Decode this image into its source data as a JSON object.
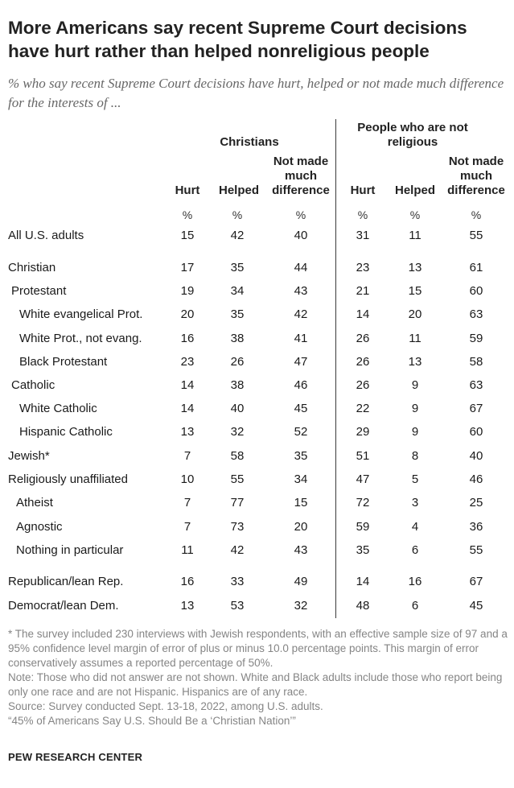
{
  "title": "More Americans say recent Supreme Court decisions have hurt rather than helped nonreligious people",
  "subtitle": "% who say recent Supreme Court decisions have hurt, helped or not made much difference for the interests of ...",
  "groups": [
    "Christians",
    "People who are not religious"
  ],
  "columns": [
    "Hurt",
    "Helped",
    "Not made much difference",
    "Hurt",
    "Helped",
    "Not made much difference"
  ],
  "unit": "%",
  "chart_data": {
    "type": "table",
    "column_groups": [
      {
        "name": "Christians",
        "columns": [
          "Hurt",
          "Helped",
          "Not made much difference"
        ]
      },
      {
        "name": "People who are not religious",
        "columns": [
          "Hurt",
          "Helped",
          "Not made much difference"
        ]
      }
    ],
    "rows": [
      {
        "label": "All U.S. adults",
        "values": [
          15,
          42,
          40,
          31,
          11,
          55
        ]
      },
      {
        "label": "Christian",
        "values": [
          17,
          35,
          44,
          23,
          13,
          61
        ]
      },
      {
        "label": "Protestant",
        "values": [
          19,
          34,
          43,
          21,
          15,
          60
        ]
      },
      {
        "label": "White evangelical Prot.",
        "values": [
          20,
          35,
          42,
          14,
          20,
          63
        ]
      },
      {
        "label": "White Prot., not evang.",
        "values": [
          16,
          38,
          41,
          26,
          11,
          59
        ]
      },
      {
        "label": "Black Protestant",
        "values": [
          23,
          26,
          47,
          26,
          13,
          58
        ]
      },
      {
        "label": "Catholic",
        "values": [
          14,
          38,
          46,
          26,
          9,
          63
        ]
      },
      {
        "label": "White Catholic",
        "values": [
          14,
          40,
          45,
          22,
          9,
          67
        ]
      },
      {
        "label": "Hispanic Catholic",
        "values": [
          13,
          32,
          52,
          29,
          9,
          60
        ]
      },
      {
        "label": "Jewish*",
        "values": [
          7,
          58,
          35,
          51,
          8,
          40
        ]
      },
      {
        "label": "Religiously unaffiliated",
        "values": [
          10,
          55,
          34,
          47,
          5,
          46
        ]
      },
      {
        "label": "Atheist",
        "values": [
          7,
          77,
          15,
          72,
          3,
          25
        ]
      },
      {
        "label": "Agnostic",
        "values": [
          7,
          73,
          20,
          59,
          4,
          36
        ]
      },
      {
        "label": "Nothing in particular",
        "values": [
          11,
          42,
          43,
          35,
          6,
          55
        ]
      },
      {
        "label": "Republican/lean Rep.",
        "values": [
          16,
          33,
          49,
          14,
          16,
          67
        ]
      },
      {
        "label": "Democrat/lean Dem.",
        "values": [
          13,
          53,
          32,
          48,
          6,
          45
        ]
      }
    ]
  },
  "notes": [
    "* The survey included 230 interviews with Jewish respondents, with an effective sample size of 97 and a 95% confidence level margin of error of plus or minus 10.0 percentage points. This margin of error conservatively assumes a reported percentage of 50%.",
    "Note: Those who did not answer are not shown. White and Black adults include those who report being only one race and are not Hispanic. Hispanics are of any race.",
    "Source: Survey conducted Sept. 13-18, 2022, among U.S. adults.",
    "“45% of Americans Say U.S. Should Be a ‘Christian Nation’”"
  ],
  "brand": "PEW RESEARCH CENTER"
}
